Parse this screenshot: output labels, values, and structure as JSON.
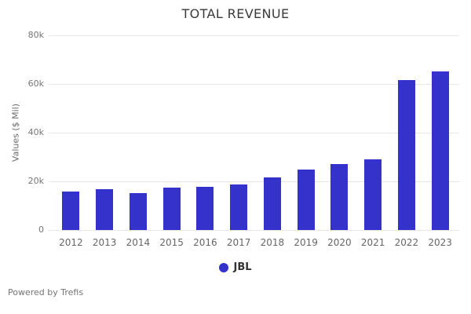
{
  "header": {
    "title": "TOTAL REVENUE"
  },
  "chart_data": {
    "type": "bar",
    "title": "TOTAL REVENUE",
    "categories": [
      "2012",
      "2013",
      "2014",
      "2015",
      "2016",
      "2017",
      "2018",
      "2019",
      "2020",
      "2021",
      "2022",
      "2023"
    ],
    "series": [
      {
        "name": "JBL",
        "values": [
          15700,
          16700,
          15200,
          17300,
          17900,
          18600,
          21500,
          24800,
          27000,
          29000,
          61600,
          65200
        ],
        "color": "#3531cb"
      }
    ],
    "xlabel": "",
    "ylabel": "Values ($ Mil)",
    "ylim": [
      0,
      80000
    ],
    "yticks": [
      {
        "value": 0,
        "label": "0"
      },
      {
        "value": 20000,
        "label": "20k"
      },
      {
        "value": 40000,
        "label": "40k"
      },
      {
        "value": 60000,
        "label": "60k"
      },
      {
        "value": 80000,
        "label": "80k"
      }
    ],
    "grid": true,
    "legend_position": "bottom"
  },
  "legend": {
    "items": [
      {
        "label": "JBL",
        "color": "#3531cb"
      }
    ]
  },
  "footer": {
    "text": "Powered by Trefis"
  },
  "colors": {
    "bar": "#3531cb",
    "gridline": "#e6e6e6",
    "title_text": "#3a3a3a",
    "axis_text": "#666666",
    "tick_text": "#757575",
    "footer_text": "#757575"
  }
}
